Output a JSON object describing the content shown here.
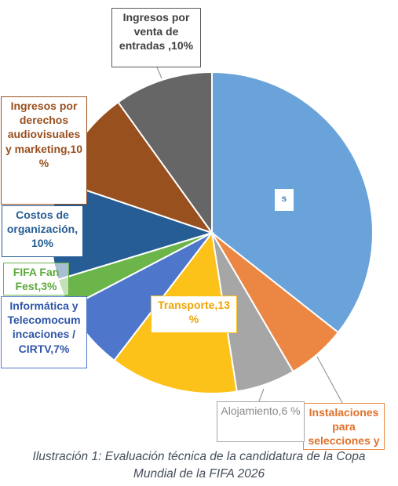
{
  "chart_data": {
    "type": "pie",
    "slices": [
      {
        "label": "s",
        "value": 36,
        "color": "#6aa2da"
      },
      {
        "label": "Instalaciones para selecciones y",
        "value": 6,
        "color": "#ec8743"
      },
      {
        "label": "Alojamiento,6 %",
        "value": 6,
        "color": "#a6a6a6"
      },
      {
        "label": "Transporte,13 %",
        "value": 13,
        "color": "#fcc219"
      },
      {
        "label": "Informática y Telecomocum incaciones / CIRTV,7%",
        "value": 7,
        "color": "#4e77cc"
      },
      {
        "label": "FIFA Fan Fest,3%",
        "value": 3,
        "color": "#6bb54b"
      },
      {
        "label": "Costos de organización, 10%",
        "value": 10,
        "color": "#255d94"
      },
      {
        "label": "Ingresos por derechos audiovisuales y marketing,10 %",
        "value": 10,
        "color": "#99501f"
      },
      {
        "label": "Ingresos por venta de entradas ,10%",
        "value": 10,
        "color": "#666666"
      }
    ]
  },
  "caption": {
    "line1": "Ilustración 1: Evaluación técnica de la candidatura de la Copa",
    "line2": "Mundial de la FIFA 2026"
  }
}
